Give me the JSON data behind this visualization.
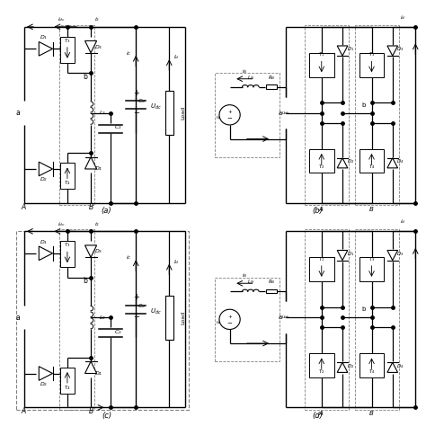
{
  "bg_color": "#ffffff",
  "line_color": "#000000",
  "gray_color": "#888888",
  "labels": [
    "(a)",
    "(b)",
    "(c)",
    "(d)"
  ]
}
